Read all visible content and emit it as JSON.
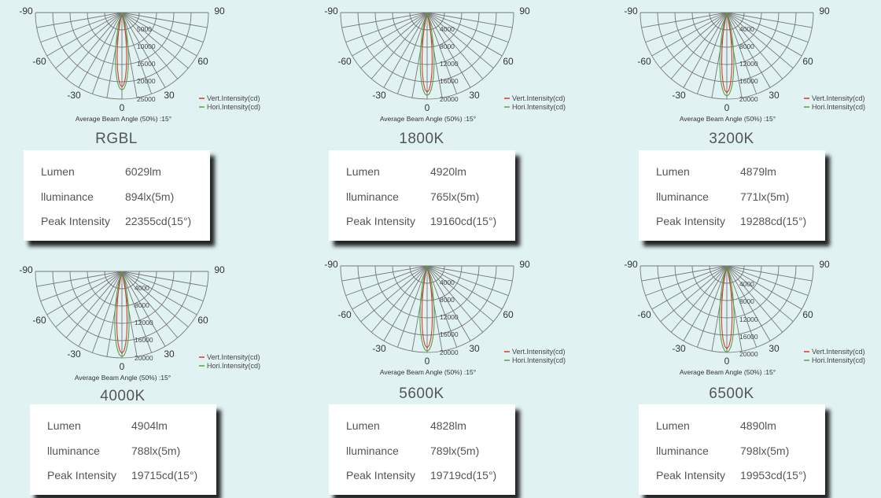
{
  "axis_angles": [
    "-90",
    "90",
    "-60",
    "60",
    "-30",
    "30",
    "0"
  ],
  "caption": "Average Beam Angle (50%) :15°",
  "legend": {
    "vertical": "Vert.Intensity(cd)",
    "horizontal": "Hori.Intensity(cd)"
  },
  "row_labels": {
    "lumen": "Lumen",
    "illuminance": "lluminance",
    "peak": "Peak Intensity"
  },
  "colors": {
    "background": "#e1f2f3",
    "grid": "#777777",
    "vertical": "#d83a2e",
    "horizontal": "#52a447"
  },
  "chart_data": [
    {
      "type": "polar",
      "title": "RGBL",
      "radial_ticks": [
        "5000",
        "10000",
        "15000",
        "20000",
        "25000"
      ],
      "radial_max": 25000,
      "beam_angle_deg": 15,
      "peak_cd": 22355,
      "lumen": "6029lm",
      "illuminance": "894lx(5m)",
      "peak_intensity": "22355cd(15°)",
      "series": [
        {
          "name": "Vert.Intensity(cd)"
        },
        {
          "name": "Hori.Intensity(cd)"
        }
      ]
    },
    {
      "type": "polar",
      "title": "1800K",
      "radial_ticks": [
        "4000",
        "8000",
        "12000",
        "16000",
        "20000"
      ],
      "radial_max": 20000,
      "beam_angle_deg": 15,
      "peak_cd": 19160,
      "lumen": "4920lm",
      "illuminance": "765lx(5m)",
      "peak_intensity": "19160cd(15°)",
      "series": [
        {
          "name": "Vert.Intensity(cd)"
        },
        {
          "name": "Hori.Intensity(cd)"
        }
      ]
    },
    {
      "type": "polar",
      "title": "3200K",
      "radial_ticks": [
        "4000",
        "8000",
        "12000",
        "16000",
        "20000"
      ],
      "radial_max": 20000,
      "beam_angle_deg": 15,
      "peak_cd": 19288,
      "lumen": "4879lm",
      "illuminance": "771lx(5m)",
      "peak_intensity": "19288cd(15°)",
      "series": [
        {
          "name": "Vert.Intensity(cd)"
        },
        {
          "name": "Hori.Intensity(cd)"
        }
      ]
    },
    {
      "type": "polar",
      "title": "4000K",
      "radial_ticks": [
        "4000",
        "8000",
        "12000",
        "16000",
        "20000"
      ],
      "radial_max": 20000,
      "beam_angle_deg": 15,
      "peak_cd": 19715,
      "lumen": "4904lm",
      "illuminance": "788lx(5m)",
      "peak_intensity": "19715cd(15°)",
      "series": [
        {
          "name": "Vert.Intensity(cd)"
        },
        {
          "name": "Hori.Intensity(cd)"
        }
      ]
    },
    {
      "type": "polar",
      "title": "5600K",
      "radial_ticks": [
        "4000",
        "8000",
        "12000",
        "16000",
        "20000"
      ],
      "radial_max": 20000,
      "beam_angle_deg": 15,
      "peak_cd": 19719,
      "lumen": "4828lm",
      "illuminance": "789lx(5m)",
      "peak_intensity": "19719cd(15°)",
      "series": [
        {
          "name": "Vert.Intensity(cd)"
        },
        {
          "name": "Hori.Intensity(cd)"
        }
      ]
    },
    {
      "type": "polar",
      "title": "6500K",
      "radial_ticks": [
        "4000",
        "8000",
        "12000",
        "16000",
        "20000"
      ],
      "radial_max": 20000,
      "beam_angle_deg": 15,
      "peak_cd": 19953,
      "lumen": "4890lm",
      "illuminance": "798lx(5m)",
      "peak_intensity": "19953cd(15°)",
      "series": [
        {
          "name": "Vert.Intensity(cd)"
        },
        {
          "name": "Hori.Intensity(cd)"
        }
      ]
    }
  ]
}
